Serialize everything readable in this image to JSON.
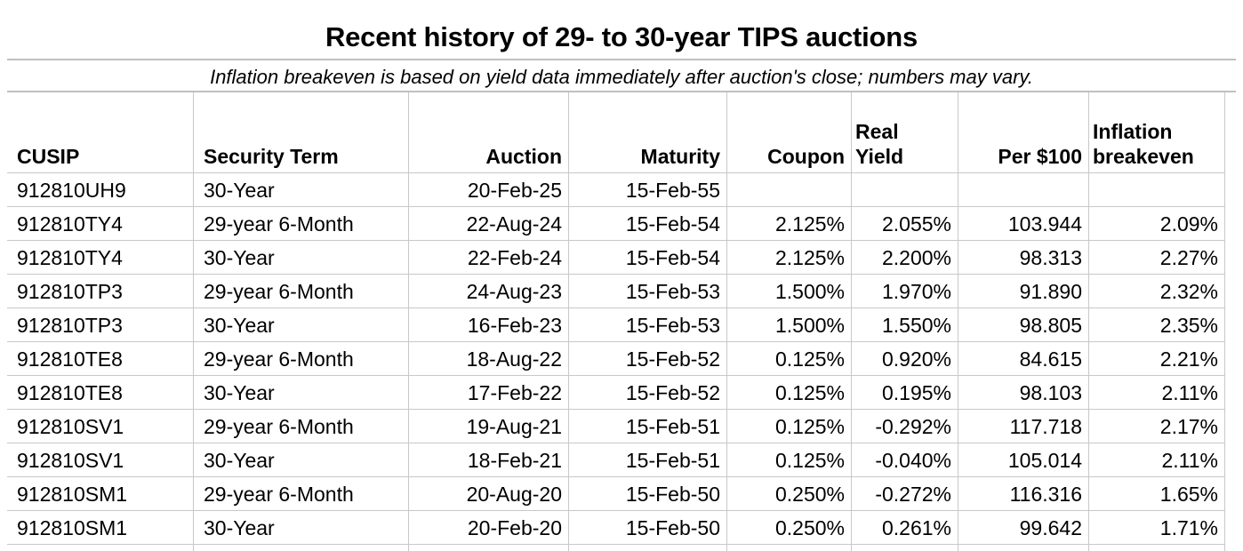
{
  "header": {
    "title": "Recent history of 29- to 30-year TIPS auctions",
    "subtitle": "Inflation breakeven is based on yield data immediately after auction's close; numbers may vary."
  },
  "table": {
    "columns": [
      {
        "label": "CUSIP",
        "align": "left"
      },
      {
        "label": "Security Term",
        "align": "left"
      },
      {
        "label": "Auction",
        "align": "right"
      },
      {
        "label": "Maturity",
        "align": "right"
      },
      {
        "label": "Coupon",
        "align": "right"
      },
      {
        "label": "Real Yield",
        "align": "right"
      },
      {
        "label": "Per $100",
        "align": "right"
      },
      {
        "label": "Inflation breakeven",
        "align": "right"
      }
    ],
    "rows": [
      [
        "912810UH9",
        "30-Year",
        "20-Feb-25",
        "15-Feb-55",
        "",
        "",
        "",
        ""
      ],
      [
        "912810TY4",
        "29-year 6-Month",
        "22-Aug-24",
        "15-Feb-54",
        "2.125%",
        "2.055%",
        "103.944",
        "2.09%"
      ],
      [
        "912810TY4",
        "30-Year",
        "22-Feb-24",
        "15-Feb-54",
        "2.125%",
        "2.200%",
        "98.313",
        "2.27%"
      ],
      [
        "912810TP3",
        "29-year 6-Month",
        "24-Aug-23",
        "15-Feb-53",
        "1.500%",
        "1.970%",
        "91.890",
        "2.32%"
      ],
      [
        "912810TP3",
        "30-Year",
        "16-Feb-23",
        "15-Feb-53",
        "1.500%",
        "1.550%",
        "98.805",
        "2.35%"
      ],
      [
        "912810TE8",
        "29-year 6-Month",
        "18-Aug-22",
        "15-Feb-52",
        "0.125%",
        "0.920%",
        "84.615",
        "2.21%"
      ],
      [
        "912810TE8",
        "30-Year",
        "17-Feb-22",
        "15-Feb-52",
        "0.125%",
        "0.195%",
        "98.103",
        "2.11%"
      ],
      [
        "912810SV1",
        "29-year 6-Month",
        "19-Aug-21",
        "15-Feb-51",
        "0.125%",
        "-0.292%",
        "117.718",
        "2.17%"
      ],
      [
        "912810SV1",
        "30-Year",
        "18-Feb-21",
        "15-Feb-51",
        "0.125%",
        "-0.040%",
        "105.014",
        "2.11%"
      ],
      [
        "912810SM1",
        "29-year 6-Month",
        "20-Aug-20",
        "15-Feb-50",
        "0.250%",
        "-0.272%",
        "116.316",
        "1.65%"
      ],
      [
        "912810SM1",
        "30-Year",
        "20-Feb-20",
        "15-Feb-50",
        "0.250%",
        "0.261%",
        "99.642",
        "1.71%"
      ]
    ]
  },
  "colors": {
    "background": "#ffffff",
    "text": "#000000",
    "gridline": "#c8c8c8",
    "rule": "#bfbfbf"
  }
}
